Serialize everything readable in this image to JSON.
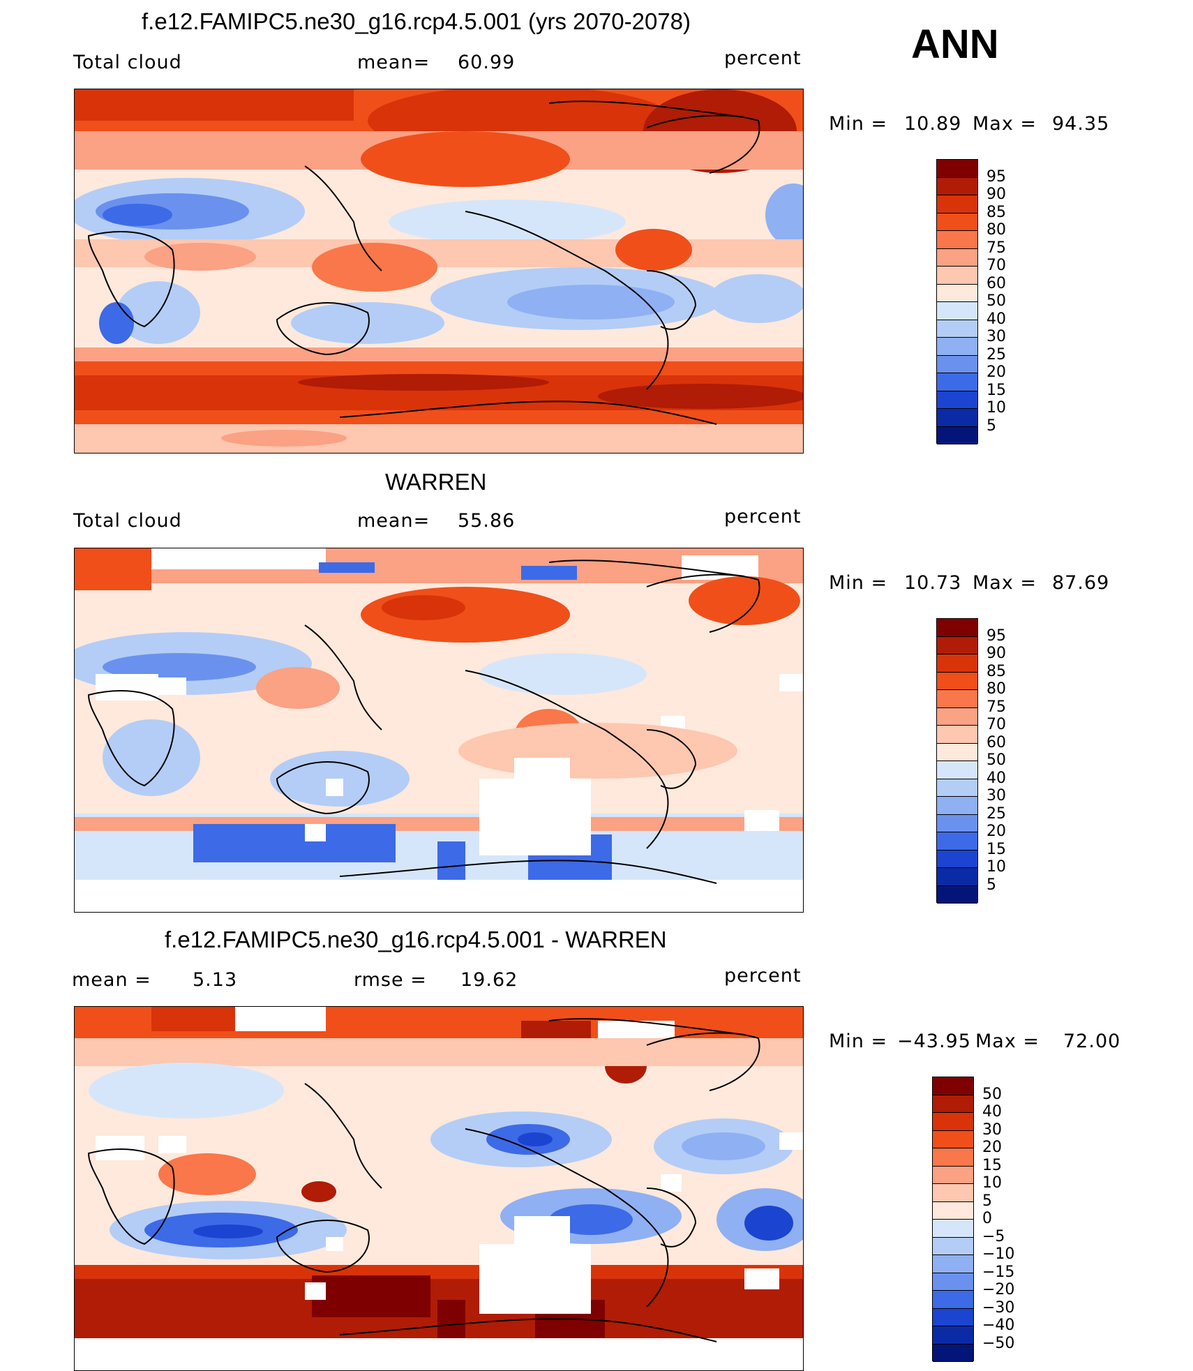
{
  "header": {
    "season": "ANN"
  },
  "panels": [
    {
      "id": "model",
      "title": "f.e12.FAMIPC5.ne30_g16.rcp4.5.001 (yrs 2070-2078)",
      "left_label": "Total cloud",
      "stat_label": "mean=",
      "stat_value": "60.99",
      "rmse_label": "",
      "rmse_value": "",
      "units": "percent",
      "min_label": "Min =",
      "min_value": "10.89",
      "max_label": "Max =",
      "max_value": "94.35",
      "colorbar": [
        "95",
        "90",
        "85",
        "80",
        "75",
        "70",
        "60",
        "50",
        "40",
        "30",
        "25",
        "20",
        "15",
        "10",
        "5"
      ]
    },
    {
      "id": "obs",
      "title": "WARREN",
      "left_label": "Total cloud",
      "stat_label": "mean=",
      "stat_value": "55.86",
      "rmse_label": "",
      "rmse_value": "",
      "units": "percent",
      "min_label": "Min =",
      "min_value": "10.73",
      "max_label": "Max =",
      "max_value": "87.69",
      "colorbar": [
        "95",
        "90",
        "85",
        "80",
        "75",
        "70",
        "60",
        "50",
        "40",
        "30",
        "25",
        "20",
        "15",
        "10",
        "5"
      ]
    },
    {
      "id": "diff",
      "title": "f.e12.FAMIPC5.ne30_g16.rcp4.5.001 - WARREN",
      "left_label": "mean =",
      "stat_label": "",
      "stat_value": "5.13",
      "rmse_label": "rmse =",
      "rmse_value": "19.62",
      "units": "percent",
      "min_label": "Min =",
      "min_value": "−43.95",
      "max_label": "Max =",
      "max_value": "72.00",
      "colorbar": [
        "50",
        "40",
        "30",
        "20",
        "15",
        "10",
        "5",
        "0",
        "−5",
        "−10",
        "−15",
        "−20",
        "−30",
        "−40",
        "−50"
      ]
    }
  ],
  "colors": {
    "scale": [
      "#7f0000",
      "#b01c05",
      "#d9330a",
      "#f04f1a",
      "#f9774a",
      "#fba184",
      "#fdc7b0",
      "#fee9dc",
      "#d6e6fa",
      "#b3cdf6",
      "#8fb0f3",
      "#6b91ee",
      "#3d6ae6",
      "#1b45d0",
      "#0a2aa6",
      "#04157a"
    ],
    "missing": "#ffffff",
    "coast": "#000000"
  }
}
